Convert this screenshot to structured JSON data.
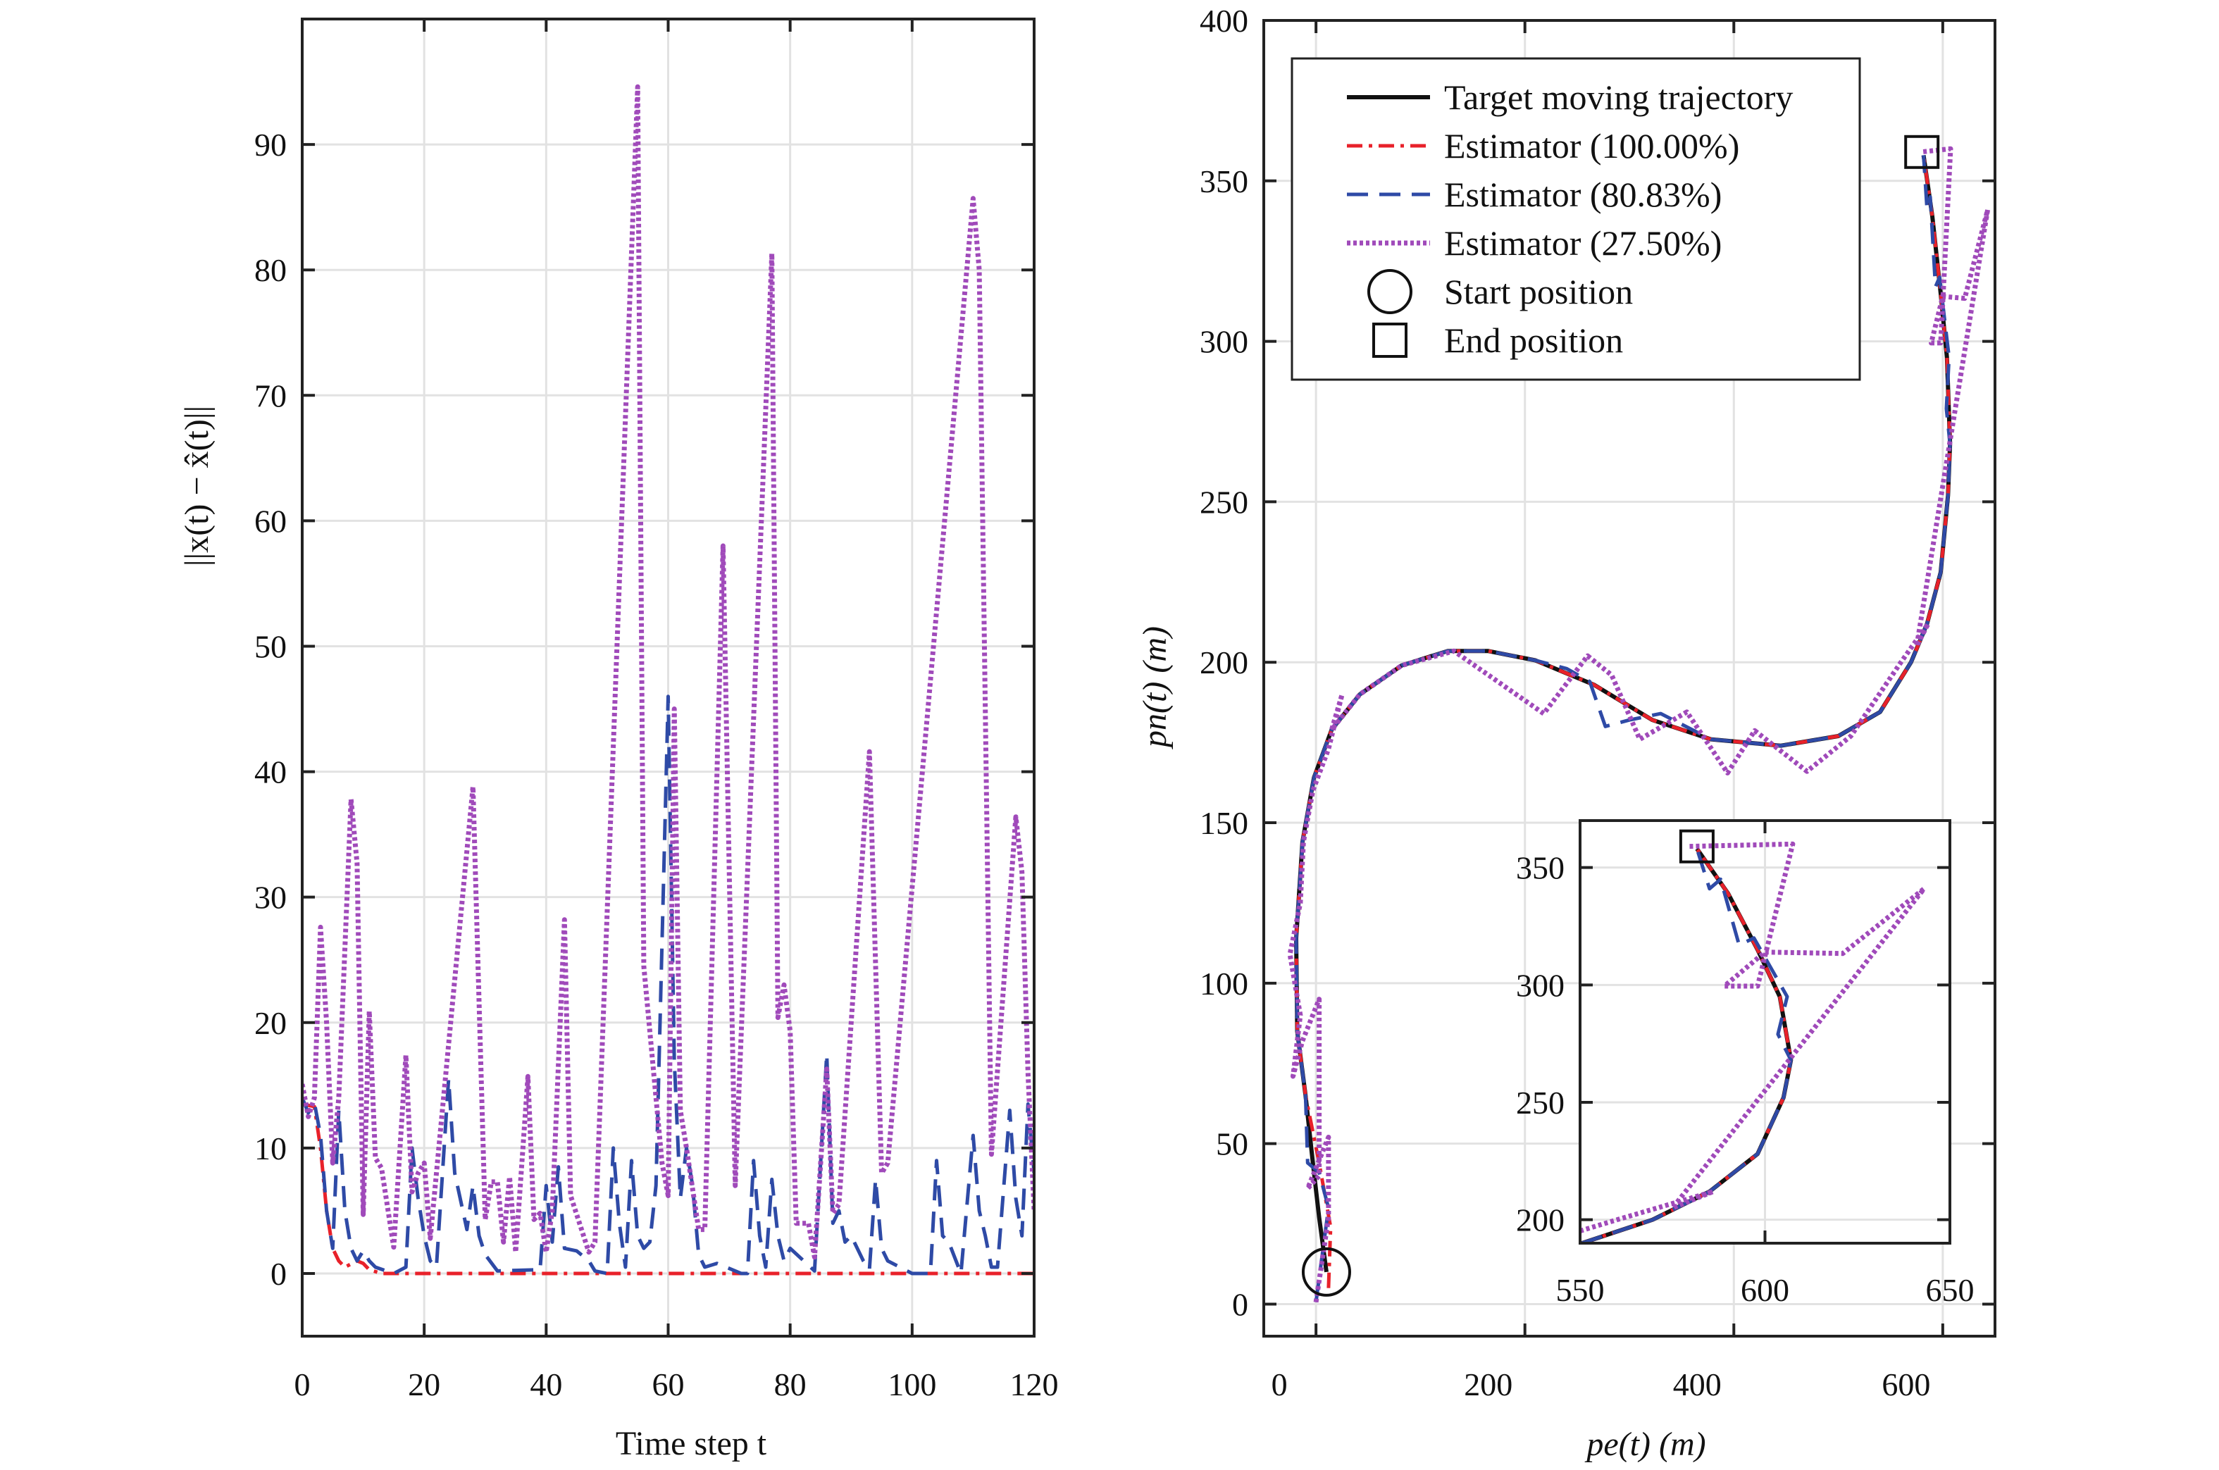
{
  "chart_data": [
    {
      "type": "line",
      "xlabel": "Time step t",
      "ylabel": "||x(t) − x̂(t)||",
      "xlim": [
        0,
        120
      ],
      "ylim": [
        -5,
        100
      ],
      "xticks": [
        0,
        20,
        40,
        60,
        80,
        100,
        120
      ],
      "yticks": [
        0,
        10,
        20,
        30,
        40,
        50,
        60,
        70,
        80,
        90
      ],
      "grid": true,
      "series": [
        {
          "color": "#e8212a",
          "style": "dash-dot",
          "x": [
            0,
            2,
            3,
            4,
            5,
            6,
            7,
            9,
            10,
            11,
            13,
            120
          ],
          "y": [
            13.5,
            13.3,
            10,
            5,
            2,
            1,
            0.5,
            1,
            0.8,
            0.3,
            0,
            0
          ]
        },
        {
          "color": "#2e4aa6",
          "style": "dashed",
          "x": [
            0,
            1,
            2,
            3,
            4,
            5,
            6,
            7,
            8,
            9,
            10,
            11,
            12,
            15,
            17,
            18,
            19,
            20,
            21,
            22,
            24,
            25,
            27,
            28,
            29,
            30,
            32,
            39,
            40,
            41,
            42,
            43,
            45,
            47,
            48,
            50,
            51,
            52,
            53,
            54,
            55,
            56,
            57,
            58,
            60,
            61,
            62,
            63,
            64,
            65,
            66,
            68,
            70,
            72,
            73,
            74,
            75,
            76,
            77,
            78,
            79,
            80,
            84,
            86,
            87,
            88,
            89,
            90,
            92,
            93,
            94,
            95,
            96,
            98,
            100,
            103,
            104,
            105,
            106,
            108,
            110,
            111,
            112,
            113,
            114,
            116,
            117,
            118,
            119,
            120
          ],
          "y": [
            14,
            12.8,
            13.6,
            11,
            5,
            2,
            13,
            5,
            2,
            1,
            1.8,
            1,
            0.5,
            0,
            0.5,
            10,
            6,
            3,
            1,
            0.5,
            15.5,
            8,
            3.5,
            7,
            3,
            1.5,
            0.2,
            0.3,
            7,
            2.5,
            8.5,
            2,
            1.8,
            1,
            0.2,
            0,
            10,
            4,
            0.5,
            9,
            3,
            2,
            2.5,
            7,
            46,
            17,
            6,
            10,
            7,
            1.5,
            0.5,
            0.8,
            0.4,
            0,
            0,
            9,
            3,
            0.5,
            7.5,
            3,
            1,
            2,
            0.2,
            17.5,
            4,
            5,
            2.5,
            3,
            1,
            0.3,
            7.5,
            2,
            1,
            0.5,
            0,
            0,
            9,
            3,
            2.5,
            0,
            11,
            5,
            3,
            0.5,
            0.5,
            13,
            6,
            3,
            13.5,
            8
          ]
        },
        {
          "color": "#a04aba",
          "style": "dotted",
          "x": [
            0,
            1,
            2,
            3,
            4,
            5,
            6,
            8,
            9,
            10,
            11,
            12,
            13,
            15,
            17,
            18,
            19,
            20,
            21,
            28,
            30,
            31,
            32,
            33,
            34,
            35,
            37,
            38,
            39,
            40,
            41,
            43,
            44,
            47,
            48,
            55,
            56,
            59,
            60,
            61,
            62,
            63,
            65,
            66,
            69,
            71,
            77,
            78,
            79,
            80,
            81,
            83,
            84,
            86,
            87,
            88,
            93,
            95,
            96,
            110,
            111,
            113,
            117,
            118,
            119,
            120
          ],
          "y": [
            15.1,
            12.5,
            14,
            27.6,
            20,
            8.8,
            14,
            37.8,
            32.7,
            4.7,
            20.9,
            9.2,
            8.4,
            2.1,
            17.4,
            6.5,
            8,
            8.8,
            2.8,
            38.8,
            4.3,
            7.3,
            7.3,
            2.5,
            7.7,
            1.7,
            15.7,
            4.3,
            4.8,
            1.7,
            5,
            28.2,
            6.2,
            1.7,
            2.5,
            94.6,
            24.5,
            8.8,
            6.2,
            45,
            13,
            10,
            3.5,
            3.5,
            58,
            7,
            81.3,
            20.4,
            23,
            19.3,
            4,
            4,
            1.3,
            16.3,
            4.8,
            5.5,
            41.6,
            8,
            8.8,
            85.7,
            80,
            9.5,
            36.4,
            32,
            16,
            5
          ]
        }
      ]
    },
    {
      "type": "line",
      "xlabel": "pe(t) (m)",
      "ylabel": "pn(t) (m)",
      "xlim": [
        -50,
        650
      ],
      "ylim": [
        -10,
        400
      ],
      "xticks": [
        0,
        200,
        400,
        600
      ],
      "yticks": [
        0,
        50,
        100,
        150,
        200,
        250,
        300,
        350,
        400
      ],
      "grid": true,
      "legend": {
        "position": "top-left",
        "entries": [
          "Target moving trajectory",
          "Estimator (100.00%)",
          "Estimator (80.83%)",
          "Estimator (27.50%)",
          "Start position",
          "End position"
        ]
      },
      "series": [
        {
          "name": "Target moving trajectory",
          "color": "#111111",
          "style": "solid",
          "x": [
            10,
            3,
            -3,
            -10,
            -18,
            -19,
            -13,
            -2,
            15,
            42,
            82,
            126,
            165,
            210,
            266,
            322,
            378,
            445,
            500,
            540,
            569.6,
            585,
            598,
            605,
            607,
            604,
            598,
            590,
            581.6
          ],
          "y": [
            10,
            27,
            44,
            65,
            85,
            114,
            144,
            164,
            179,
            190,
            199,
            203.5,
            203.5,
            200.6,
            193,
            182,
            176,
            174,
            177,
            184.5,
            200,
            212,
            228,
            252,
            268,
            295,
            315,
            339,
            358
          ]
        },
        {
          "name": "Estimator (100.00%)",
          "color": "#e8212a",
          "style": "dash-dot",
          "x": [
            12,
            14,
            3,
            -10,
            -18,
            -19,
            -13,
            -2,
            15,
            42,
            82,
            126,
            165,
            210,
            266,
            322,
            378,
            445,
            500,
            540,
            569.6,
            585,
            598,
            605,
            607,
            604,
            598,
            590,
            581.6
          ],
          "y": [
            5,
            24,
            44,
            65,
            85,
            114,
            144,
            164,
            179,
            190,
            199,
            203.5,
            203.5,
            200.6,
            193,
            182,
            176,
            174,
            177,
            184.5,
            200,
            212,
            228,
            252,
            268,
            295,
            315,
            339,
            358
          ]
        },
        {
          "name": "Estimator (80.83%)",
          "color": "#2e4aa6",
          "style": "dashed",
          "x": [
            0,
            12,
            3,
            -8,
            -10,
            -18,
            -19,
            -13,
            -2,
            15,
            42,
            82,
            126,
            165,
            210,
            240,
            262,
            277,
            300,
            330,
            378,
            445,
            500,
            540,
            569.6,
            585,
            598,
            605,
            607,
            603.5,
            606,
            597,
            593,
            588,
            585,
            581.6
          ],
          "y": [
            0.6,
            30,
            41,
            44,
            65,
            85,
            114,
            144,
            164,
            179,
            190,
            199,
            203.5,
            203.5,
            200.6,
            198,
            194,
            180,
            182,
            184,
            176,
            174,
            177,
            184.5,
            200,
            212,
            228,
            252,
            268,
            279,
            295,
            320,
            317,
            345,
            341,
            358
          ]
        },
        {
          "name": "Estimator (27.50%)",
          "color": "#a04aba",
          "style": "dotted",
          "x": [
            0,
            12,
            12,
            -8,
            3,
            3,
            -13,
            -22,
            -15,
            -25,
            -15,
            -12,
            -3,
            12,
            25,
            15,
            42,
            82,
            132,
            218,
            260,
            283,
            310,
            355,
            394,
            420,
            470,
            512,
            560,
            586,
            575,
            607.5,
            643,
            621,
            600,
            589,
            598,
            607.5,
            579
          ],
          "y": [
            0.6,
            27,
            52,
            36,
            40,
            95,
            82,
            71,
            90,
            109,
            125,
            144,
            160,
            173,
            190,
            179,
            190,
            199,
            203.5,
            184,
            202,
            196,
            176,
            184.5,
            165.5,
            178.7,
            166,
            177,
            200,
            212,
            205,
            270,
            341,
            313.4,
            314,
            299.5,
            299.5,
            360,
            359
          ]
        }
      ],
      "markers": {
        "start": {
          "label": "Start position",
          "shape": "circle",
          "x": 10,
          "y": 10
        },
        "end": {
          "label": "End position",
          "shape": "square",
          "x": 580,
          "y": 359
        }
      },
      "inset": {
        "xlim": [
          550,
          650
        ],
        "ylim": [
          190,
          370
        ],
        "xticks": [
          550,
          600,
          650
        ],
        "yticks": [
          200,
          250,
          300,
          350
        ]
      }
    }
  ]
}
